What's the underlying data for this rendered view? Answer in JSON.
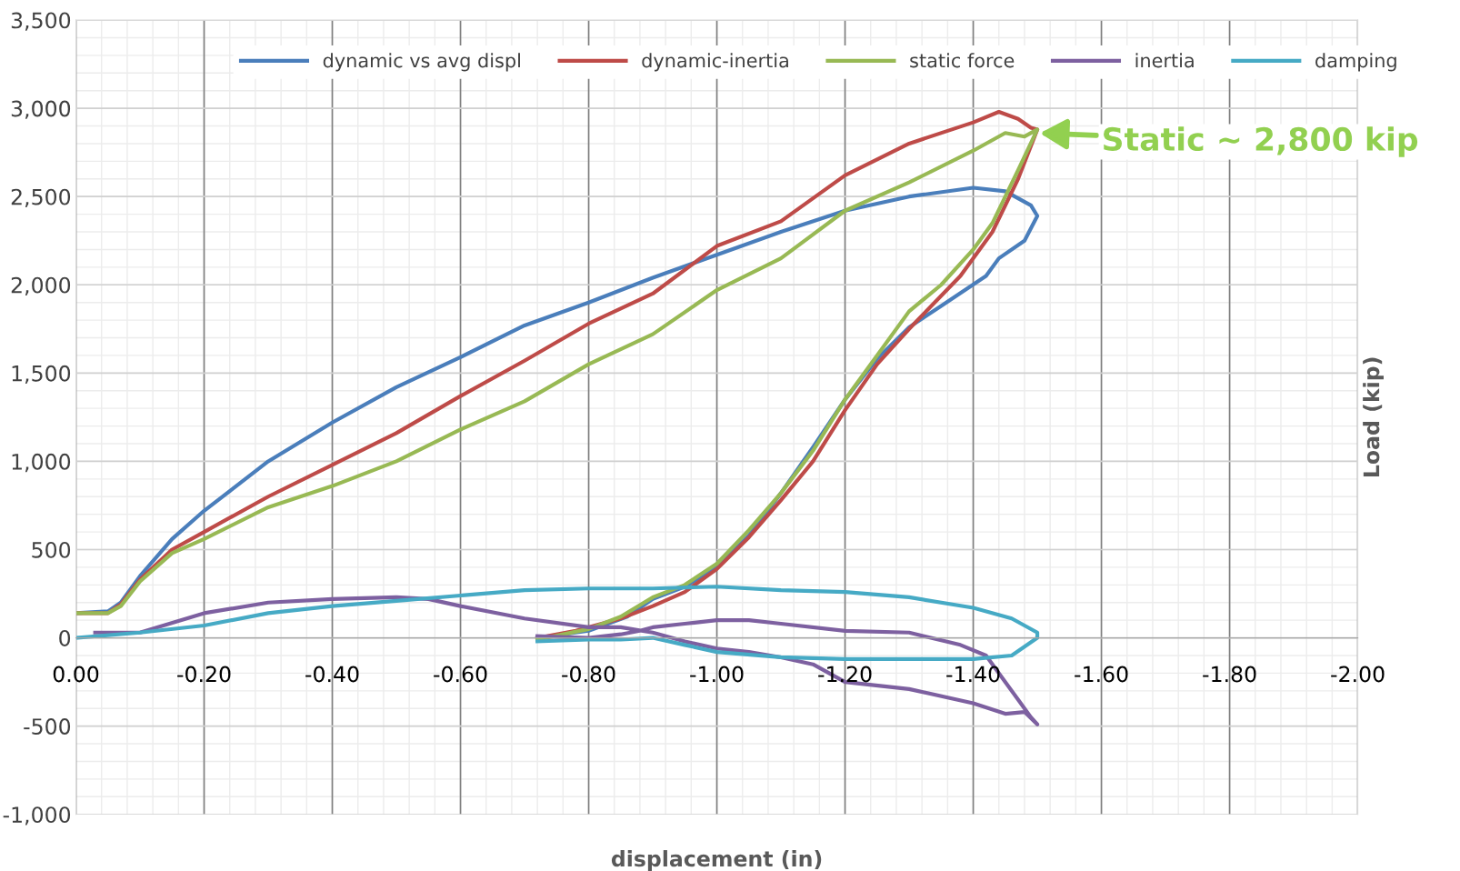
{
  "chart_data": {
    "type": "line",
    "xlabel": "displacement (in)",
    "ylabel": "Load (kip)",
    "xlim": [
      0,
      -2
    ],
    "ylim": [
      -1000,
      3500
    ],
    "xticks": [
      {
        "value": 0,
        "label": "0.00"
      },
      {
        "value": -0.2,
        "label": "-0.20"
      },
      {
        "value": -0.4,
        "label": "-0.40"
      },
      {
        "value": -0.6,
        "label": "-0.60"
      },
      {
        "value": -0.8,
        "label": "-0.80"
      },
      {
        "value": -1.0,
        "label": "-1.00"
      },
      {
        "value": -1.2,
        "label": "-1.20"
      },
      {
        "value": -1.4,
        "label": "-1.40"
      },
      {
        "value": -1.6,
        "label": "-1.60"
      },
      {
        "value": -1.8,
        "label": "-1.80"
      },
      {
        "value": -2.0,
        "label": "-2.00"
      }
    ],
    "yticks": [
      {
        "value": -1000,
        "label": "-1,000"
      },
      -500,
      0,
      500,
      {
        "value": 1000,
        "label": "1,000"
      },
      {
        "value": 1500,
        "label": "1,500"
      },
      {
        "value": 2000,
        "label": "2,000"
      },
      {
        "value": 2500,
        "label": "2,500"
      },
      {
        "value": 3000,
        "label": "3,000"
      },
      {
        "value": 3500,
        "label": "3,500"
      }
    ],
    "grid": true,
    "legend": "top",
    "marker": "none",
    "line_style": "solid",
    "annotations": [
      {
        "text": "Static ~ 2,800 kip",
        "x": -1.5,
        "y": 2860
      }
    ],
    "series": [
      {
        "name": "dynamic vs avg displ",
        "color": "#4a7ebb",
        "x": [
          0,
          -0.05,
          -0.07,
          -0.1,
          -0.15,
          -0.2,
          -0.3,
          -0.4,
          -0.5,
          -0.6,
          -0.7,
          -0.8,
          -0.9,
          -1.0,
          -1.1,
          -1.2,
          -1.3,
          -1.4,
          -1.45,
          -1.49,
          -1.5,
          -1.48,
          -1.44,
          -1.42,
          -1.35,
          -1.3,
          -1.25,
          -1.2,
          -1.15,
          -1.1,
          -1.05,
          -1.0,
          -0.95,
          -0.9,
          -0.86,
          -0.8,
          -0.72
        ],
        "values": [
          140,
          150,
          200,
          350,
          560,
          720,
          1000,
          1220,
          1420,
          1590,
          1770,
          1900,
          2040,
          2170,
          2300,
          2420,
          2500,
          2550,
          2530,
          2450,
          2390,
          2250,
          2150,
          2050,
          1880,
          1760,
          1580,
          1350,
          1080,
          820,
          580,
          400,
          290,
          220,
          120,
          40,
          0
        ]
      },
      {
        "name": "dynamic-inertia",
        "color": "#be4b48",
        "x": [
          0,
          -0.05,
          -0.07,
          -0.1,
          -0.15,
          -0.2,
          -0.3,
          -0.4,
          -0.5,
          -0.6,
          -0.7,
          -0.8,
          -0.9,
          -1.0,
          -1.1,
          -1.2,
          -1.3,
          -1.4,
          -1.44,
          -1.47,
          -1.49,
          -1.5,
          -1.47,
          -1.43,
          -1.38,
          -1.3,
          -1.25,
          -1.2,
          -1.15,
          -1.1,
          -1.05,
          -1.0,
          -0.95,
          -0.9,
          -0.85,
          -0.78,
          -0.72
        ],
        "values": [
          140,
          140,
          190,
          330,
          500,
          600,
          800,
          980,
          1160,
          1370,
          1570,
          1780,
          1950,
          2220,
          2360,
          2620,
          2800,
          2920,
          2980,
          2940,
          2890,
          2880,
          2600,
          2300,
          2050,
          1750,
          1550,
          1290,
          1000,
          780,
          570,
          390,
          260,
          180,
          110,
          40,
          0
        ]
      },
      {
        "name": "static force",
        "color": "#98b954",
        "x": [
          0,
          -0.05,
          -0.07,
          -0.1,
          -0.15,
          -0.2,
          -0.3,
          -0.4,
          -0.5,
          -0.6,
          -0.7,
          -0.8,
          -0.9,
          -1.0,
          -1.1,
          -1.2,
          -1.3,
          -1.4,
          -1.45,
          -1.48,
          -1.5,
          -1.47,
          -1.43,
          -1.4,
          -1.35,
          -1.3,
          -1.25,
          -1.2,
          -1.15,
          -1.1,
          -1.05,
          -1.0,
          -0.95,
          -0.9,
          -0.85,
          -0.8,
          -0.72
        ],
        "values": [
          140,
          140,
          180,
          320,
          480,
          560,
          740,
          860,
          1000,
          1180,
          1340,
          1550,
          1720,
          1970,
          2150,
          2420,
          2580,
          2760,
          2860,
          2840,
          2880,
          2650,
          2350,
          2200,
          2000,
          1850,
          1600,
          1350,
          1060,
          820,
          610,
          420,
          300,
          230,
          120,
          50,
          -10
        ]
      },
      {
        "name": "inertia",
        "color": "#7d60a0",
        "x": [
          -0.03,
          -0.1,
          -0.2,
          -0.3,
          -0.4,
          -0.5,
          -0.55,
          -0.6,
          -0.7,
          -0.8,
          -0.85,
          -0.9,
          -0.95,
          -1.0,
          -1.05,
          -1.1,
          -1.15,
          -1.2,
          -1.3,
          -1.4,
          -1.45,
          -1.48,
          -1.5,
          -1.49,
          -1.47,
          -1.44,
          -1.42,
          -1.38,
          -1.3,
          -1.2,
          -1.1,
          -1.05,
          -1.0,
          -0.95,
          -0.9,
          -0.88,
          -0.85,
          -0.8,
          -0.72
        ],
        "values": [
          30,
          30,
          140,
          200,
          220,
          230,
          220,
          180,
          110,
          60,
          60,
          30,
          -20,
          -60,
          -80,
          -110,
          -150,
          -250,
          -290,
          -370,
          -430,
          -420,
          -490,
          -450,
          -350,
          -200,
          -100,
          -40,
          30,
          40,
          80,
          100,
          100,
          80,
          60,
          40,
          20,
          0,
          10
        ]
      },
      {
        "name": "damping",
        "color": "#46aac5",
        "x": [
          0,
          -0.1,
          -0.2,
          -0.3,
          -0.4,
          -0.5,
          -0.6,
          -0.7,
          -0.8,
          -0.9,
          -1.0,
          -1.1,
          -1.2,
          -1.3,
          -1.4,
          -1.46,
          -1.5,
          -1.5,
          -1.46,
          -1.4,
          -1.3,
          -1.2,
          -1.1,
          -1.0,
          -0.95,
          -0.9,
          -0.85,
          -0.8,
          -0.72
        ],
        "values": [
          0,
          30,
          70,
          140,
          180,
          210,
          240,
          270,
          280,
          280,
          290,
          270,
          260,
          230,
          170,
          110,
          30,
          0,
          -100,
          -120,
          -120,
          -120,
          -110,
          -80,
          -40,
          0,
          -10,
          -10,
          -20
        ]
      }
    ]
  }
}
